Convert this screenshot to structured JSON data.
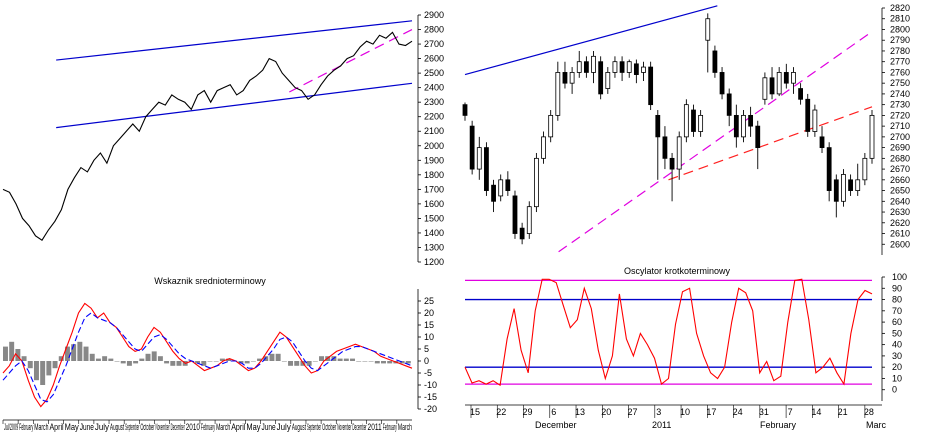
{
  "chart_data": [
    {
      "type": "line",
      "panel": "top-left",
      "title": "",
      "ylim": [
        1200,
        2900
      ],
      "yticks": [
        1200,
        1300,
        1400,
        1500,
        1600,
        1700,
        1800,
        1900,
        2000,
        2100,
        2200,
        2300,
        2400,
        2500,
        2600,
        2700,
        2800,
        2900
      ],
      "series": [
        {
          "values": [
            1700,
            1680,
            1600,
            1500,
            1450,
            1380,
            1350,
            1420,
            1480,
            1560,
            1700,
            1780,
            1850,
            1820,
            1900,
            1950,
            1880,
            2000,
            2050,
            2100,
            2150,
            2100,
            2200,
            2250,
            2300,
            2280,
            2350,
            2320,
            2300,
            2250,
            2350,
            2380,
            2300,
            2380,
            2400,
            2420,
            2350,
            2380,
            2450,
            2480,
            2520,
            2600,
            2580,
            2500,
            2450,
            2400,
            2380,
            2320,
            2350,
            2420,
            2480,
            2520,
            2550,
            2600,
            2620,
            2680,
            2720,
            2700,
            2760,
            2740,
            2780,
            2700,
            2690,
            2720
          ]
        }
      ],
      "trendlines": [
        {
          "color": "#0000cc",
          "from": [
            0.13,
            2590
          ],
          "to": [
            1.0,
            2860
          ]
        },
        {
          "color": "#0000cc",
          "from": [
            0.13,
            2125
          ],
          "to": [
            1.0,
            2430
          ]
        },
        {
          "color": "#e000e0",
          "dashed": true,
          "from": [
            0.7,
            2370
          ],
          "to": [
            1.0,
            2800
          ]
        }
      ]
    },
    {
      "type": "candlestick",
      "panel": "top-right",
      "ylim": [
        2590,
        2820
      ],
      "yticks": [
        2600,
        2610,
        2620,
        2630,
        2640,
        2650,
        2660,
        2670,
        2680,
        2690,
        2700,
        2710,
        2720,
        2730,
        2740,
        2750,
        2760,
        2770,
        2780,
        2790,
        2800,
        2810,
        2820
      ],
      "candles": [
        {
          "o": 2730,
          "c": 2720,
          "h": 2732,
          "l": 2715
        },
        {
          "o": 2710,
          "c": 2670,
          "h": 2715,
          "l": 2665
        },
        {
          "o": 2670,
          "c": 2690,
          "h": 2700,
          "l": 2660
        },
        {
          "o": 2690,
          "c": 2650,
          "h": 2695,
          "l": 2645
        },
        {
          "o": 2655,
          "c": 2640,
          "h": 2660,
          "l": 2630
        },
        {
          "o": 2645,
          "c": 2660,
          "h": 2665,
          "l": 2640
        },
        {
          "o": 2660,
          "c": 2650,
          "h": 2668,
          "l": 2645
        },
        {
          "o": 2645,
          "c": 2610,
          "h": 2650,
          "l": 2605
        },
        {
          "o": 2615,
          "c": 2605,
          "h": 2620,
          "l": 2600
        },
        {
          "o": 2610,
          "c": 2635,
          "h": 2640,
          "l": 2605
        },
        {
          "o": 2635,
          "c": 2680,
          "h": 2685,
          "l": 2630
        },
        {
          "o": 2680,
          "c": 2700,
          "h": 2705,
          "l": 2675
        },
        {
          "o": 2700,
          "c": 2720,
          "h": 2725,
          "l": 2695
        },
        {
          "o": 2720,
          "c": 2760,
          "h": 2770,
          "l": 2715
        },
        {
          "o": 2760,
          "c": 2750,
          "h": 2770,
          "l": 2745
        },
        {
          "o": 2750,
          "c": 2760,
          "h": 2765,
          "l": 2740
        },
        {
          "o": 2760,
          "c": 2770,
          "h": 2780,
          "l": 2755
        },
        {
          "o": 2770,
          "c": 2760,
          "h": 2775,
          "l": 2755
        },
        {
          "o": 2760,
          "c": 2775,
          "h": 2780,
          "l": 2750
        },
        {
          "o": 2770,
          "c": 2740,
          "h": 2775,
          "l": 2735
        },
        {
          "o": 2745,
          "c": 2760,
          "h": 2765,
          "l": 2740
        },
        {
          "o": 2760,
          "c": 2770,
          "h": 2775,
          "l": 2755
        },
        {
          "o": 2770,
          "c": 2760,
          "h": 2775,
          "l": 2752
        },
        {
          "o": 2760,
          "c": 2770,
          "h": 2772,
          "l": 2755
        },
        {
          "o": 2768,
          "c": 2758,
          "h": 2772,
          "l": 2750
        },
        {
          "o": 2760,
          "c": 2765,
          "h": 2770,
          "l": 2752
        },
        {
          "o": 2765,
          "c": 2730,
          "h": 2770,
          "l": 2725
        },
        {
          "o": 2720,
          "c": 2700,
          "h": 2725,
          "l": 2660
        },
        {
          "o": 2700,
          "c": 2680,
          "h": 2710,
          "l": 2670
        },
        {
          "o": 2680,
          "c": 2670,
          "h": 2685,
          "l": 2640
        },
        {
          "o": 2670,
          "c": 2700,
          "h": 2705,
          "l": 2660
        },
        {
          "o": 2700,
          "c": 2730,
          "h": 2735,
          "l": 2695
        },
        {
          "o": 2725,
          "c": 2705,
          "h": 2730,
          "l": 2700
        },
        {
          "o": 2705,
          "c": 2720,
          "h": 2725,
          "l": 2700
        },
        {
          "o": 2790,
          "c": 2810,
          "h": 2815,
          "l": 2760
        },
        {
          "o": 2780,
          "c": 2760,
          "h": 2785,
          "l": 2755
        },
        {
          "o": 2760,
          "c": 2740,
          "h": 2765,
          "l": 2735
        },
        {
          "o": 2740,
          "c": 2720,
          "h": 2745,
          "l": 2710
        },
        {
          "o": 2720,
          "c": 2700,
          "h": 2730,
          "l": 2690
        },
        {
          "o": 2700,
          "c": 2720,
          "h": 2725,
          "l": 2695
        },
        {
          "o": 2720,
          "c": 2710,
          "h": 2728,
          "l": 2700
        },
        {
          "o": 2710,
          "c": 2690,
          "h": 2715,
          "l": 2670
        },
        {
          "o": 2735,
          "c": 2755,
          "h": 2760,
          "l": 2730
        },
        {
          "o": 2755,
          "c": 2740,
          "h": 2765,
          "l": 2735
        },
        {
          "o": 2740,
          "c": 2760,
          "h": 2765,
          "l": 2738
        },
        {
          "o": 2760,
          "c": 2750,
          "h": 2768,
          "l": 2745
        },
        {
          "o": 2750,
          "c": 2760,
          "h": 2765,
          "l": 2740
        },
        {
          "o": 2745,
          "c": 2735,
          "h": 2750,
          "l": 2730
        },
        {
          "o": 2735,
          "c": 2705,
          "h": 2740,
          "l": 2700
        },
        {
          "o": 2705,
          "c": 2725,
          "h": 2730,
          "l": 2700
        },
        {
          "o": 2700,
          "c": 2690,
          "h": 2710,
          "l": 2685
        },
        {
          "o": 2690,
          "c": 2650,
          "h": 2695,
          "l": 2640
        },
        {
          "o": 2660,
          "c": 2640,
          "h": 2665,
          "l": 2625
        },
        {
          "o": 2640,
          "c": 2665,
          "h": 2670,
          "l": 2635
        },
        {
          "o": 2660,
          "c": 2650,
          "h": 2665,
          "l": 2645
        },
        {
          "o": 2650,
          "c": 2660,
          "h": 2675,
          "l": 2645
        },
        {
          "o": 2660,
          "c": 2680,
          "h": 2685,
          "l": 2655
        },
        {
          "o": 2680,
          "c": 2720,
          "h": 2725,
          "l": 2675
        }
      ],
      "trendlines": [
        {
          "color": "#0000cc",
          "from": [
            0.0,
            2758
          ],
          "to": [
            0.62,
            2822
          ]
        },
        {
          "color": "#e000e0",
          "dashed": true,
          "from": [
            0.23,
            2593
          ],
          "to": [
            1.0,
            2798
          ]
        },
        {
          "color": "#ff2020",
          "dashed": true,
          "from": [
            0.5,
            2660
          ],
          "to": [
            1.0,
            2728
          ]
        }
      ]
    },
    {
      "type": "line+bar",
      "panel": "bottom-left",
      "title": "Wskaznik srednioterminowy",
      "ylim": [
        -20,
        30
      ],
      "yticks": [
        -20,
        -15,
        -10,
        -5,
        0,
        5,
        10,
        15,
        20,
        25
      ],
      "xticks": [
        "Jul/2009",
        "February",
        "March",
        "April",
        "May",
        "June",
        "July",
        "August",
        "September",
        "October",
        "November",
        "December",
        "2010",
        "February",
        "March",
        "April",
        "May",
        "June",
        "July",
        "August",
        "September",
        "October",
        "November",
        "December",
        "2011",
        "February",
        "March"
      ],
      "series": [
        {
          "color": "#ff0000",
          "values": [
            -5,
            -2,
            3,
            0,
            -8,
            -15,
            -19,
            -16,
            -10,
            -2,
            5,
            12,
            20,
            24,
            22,
            18,
            20,
            16,
            14,
            10,
            6,
            4,
            5,
            10,
            14,
            12,
            8,
            4,
            1,
            -1,
            0,
            -2,
            -4,
            -3,
            -2,
            0,
            1,
            0,
            -2,
            -4,
            -3,
            0,
            4,
            8,
            12,
            10,
            6,
            2,
            -2,
            -5,
            -4,
            0,
            2,
            4,
            5,
            6,
            7,
            6,
            5,
            4,
            2,
            1,
            0,
            -1,
            -2,
            -3
          ]
        },
        {
          "color": "#0000ff",
          "dashed": true,
          "values": [
            -8,
            -5,
            -2,
            0,
            -4,
            -10,
            -16,
            -17,
            -14,
            -8,
            -2,
            5,
            12,
            18,
            20,
            18,
            17,
            16,
            14,
            11,
            8,
            5,
            4,
            7,
            10,
            11,
            9,
            6,
            3,
            1,
            0,
            -1,
            -2,
            -3,
            -2,
            -1,
            0,
            0,
            -1,
            -3,
            -3,
            -1,
            2,
            5,
            9,
            10,
            8,
            4,
            0,
            -3,
            -4,
            -2,
            0,
            2,
            4,
            5,
            6,
            6,
            5,
            4,
            3,
            2,
            1,
            0,
            -1,
            -2
          ]
        }
      ],
      "bars": [
        6,
        8,
        5,
        2,
        -3,
        -8,
        -10,
        -6,
        -3,
        2,
        6,
        7,
        8,
        6,
        3,
        1,
        2,
        1,
        0,
        -1,
        -2,
        -1,
        1,
        3,
        4,
        2,
        -1,
        -2,
        -2,
        -2,
        0,
        -1,
        -2,
        0,
        0,
        1,
        1,
        0,
        -1,
        -1,
        0,
        1,
        2,
        3,
        3,
        0,
        -2,
        -2,
        -2,
        -2,
        0,
        2,
        2,
        2,
        1,
        1,
        1,
        0,
        0,
        0,
        -1,
        -1,
        -1,
        -1,
        -1,
        -1
      ]
    },
    {
      "type": "line",
      "panel": "bottom-right",
      "title": "Oscylator krotkoterminowy",
      "ylim": [
        -10,
        100
      ],
      "yticks": [
        0,
        10,
        20,
        30,
        40,
        50,
        60,
        70,
        80,
        90,
        100
      ],
      "xticks": [
        "15",
        "22",
        "29",
        "6",
        "13",
        "20",
        "27",
        "3",
        "10",
        "17",
        "24",
        "31",
        "7",
        "14",
        "21",
        "28"
      ],
      "month_labels": [
        "December",
        "2011",
        "February",
        "Marc"
      ],
      "levels": [
        {
          "value": 97,
          "color": "#e000e0"
        },
        {
          "value": 80,
          "color": "#0000cc"
        },
        {
          "value": 20,
          "color": "#0000cc"
        },
        {
          "value": 5,
          "color": "#e000e0"
        }
      ],
      "series": [
        {
          "color": "#ff0000",
          "values": [
            20,
            6,
            8,
            5,
            8,
            4,
            45,
            72,
            35,
            15,
            70,
            98,
            98,
            95,
            75,
            55,
            62,
            90,
            72,
            35,
            10,
            30,
            85,
            45,
            30,
            50,
            40,
            28,
            5,
            10,
            58,
            87,
            90,
            50,
            30,
            15,
            10,
            20,
            60,
            90,
            86,
            70,
            15,
            25,
            8,
            12,
            60,
            97,
            98,
            62,
            15,
            20,
            28,
            15,
            5,
            50,
            80,
            88,
            85
          ]
        }
      ]
    }
  ]
}
